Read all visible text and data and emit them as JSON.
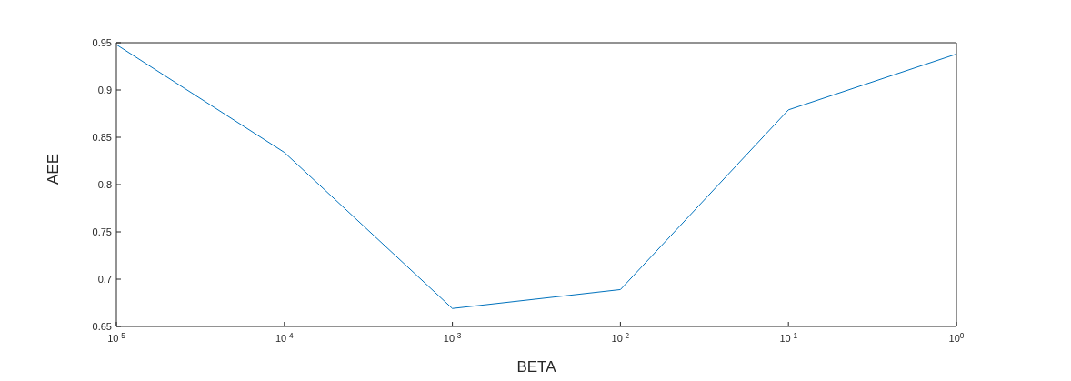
{
  "chart_data": {
    "type": "line",
    "xlabel": "BETA",
    "ylabel": "AEE",
    "x": [
      1e-05,
      0.0001,
      0.001,
      0.01,
      0.1,
      1
    ],
    "series": [
      {
        "color": "#0072bd",
        "values": [
          0.948,
          0.834,
          0.669,
          0.689,
          0.879,
          0.938
        ]
      }
    ],
    "log": "x",
    "xlim": [
      1e-05,
      1
    ],
    "xticks": [
      {
        "value": 1e-05,
        "label": "10$^{-5}$"
      },
      {
        "value": 0.0001,
        "label": "10$^{-4}$"
      },
      {
        "value": 0.001,
        "label": "10$^{-3}$"
      },
      {
        "value": 0.01,
        "label": "10$^{-2}$"
      },
      {
        "value": 0.1,
        "label": "10$^{-1}$"
      },
      {
        "value": 1,
        "label": "10$^{0}$"
      }
    ],
    "ylim": [
      0.65,
      0.95
    ],
    "yticks": [
      0.65,
      0.7,
      0.75,
      0.8,
      0.85,
      0.9,
      0.95
    ],
    "grid": false,
    "legend": false,
    "marker": "none",
    "line_style": "solid"
  }
}
